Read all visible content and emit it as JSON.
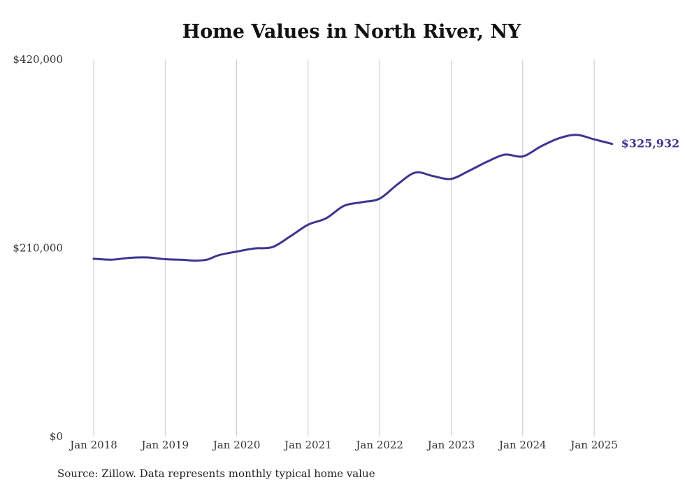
{
  "chart_data": {
    "type": "line",
    "title": "Home Values in North River, NY",
    "xlabel": "",
    "ylabel": "",
    "x_ticks": [
      "Jan 2018",
      "Jan 2019",
      "Jan 2020",
      "Jan 2021",
      "Jan 2022",
      "Jan 2023",
      "Jan 2024",
      "Jan 2025"
    ],
    "y_ticks": [
      "$0",
      "$210,000",
      "$420,000"
    ],
    "ylim": [
      0,
      420000
    ],
    "xlim": [
      "2017-12",
      "2025-07"
    ],
    "grid": "vertical",
    "series": [
      {
        "color": "#3d3590",
        "points": [
          [
            "2018-01",
            198000
          ],
          [
            "2018-04",
            197000
          ],
          [
            "2018-07",
            199000
          ],
          [
            "2018-10",
            199500
          ],
          [
            "2019-01",
            197500
          ],
          [
            "2019-04",
            196800
          ],
          [
            "2019-06",
            196000
          ],
          [
            "2019-08",
            197000
          ],
          [
            "2019-10",
            202000
          ],
          [
            "2020-01",
            206000
          ],
          [
            "2020-04",
            209500
          ],
          [
            "2020-07",
            211000
          ],
          [
            "2020-10",
            223000
          ],
          [
            "2021-01",
            236000
          ],
          [
            "2021-04",
            243000
          ],
          [
            "2021-07",
            257000
          ],
          [
            "2021-10",
            261000
          ],
          [
            "2022-01",
            265000
          ],
          [
            "2022-04",
            281000
          ],
          [
            "2022-07",
            294000
          ],
          [
            "2022-10",
            290000
          ],
          [
            "2023-01",
            287000
          ],
          [
            "2023-04",
            296000
          ],
          [
            "2023-07",
            306000
          ],
          [
            "2023-10",
            314000
          ],
          [
            "2024-01",
            312000
          ],
          [
            "2024-04",
            323000
          ],
          [
            "2024-07",
            332000
          ],
          [
            "2024-10",
            336000
          ],
          [
            "2025-01",
            331000
          ],
          [
            "2025-04",
            325932
          ]
        ]
      }
    ],
    "end_label": "$325,932"
  },
  "source": "Source: Zillow. Data represents monthly typical home value"
}
